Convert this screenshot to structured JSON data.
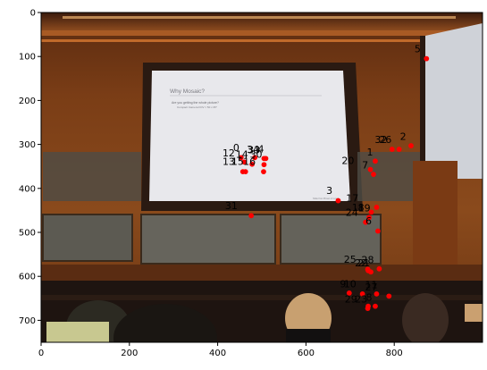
{
  "axes": {
    "xlim": [
      0,
      1000
    ],
    "ylim": [
      750,
      0
    ],
    "xticks": [
      0,
      200,
      400,
      600,
      800
    ],
    "yticks": [
      0,
      100,
      200,
      300,
      400,
      500,
      600,
      700
    ]
  },
  "slide": {
    "title": "Why Mosaic?",
    "bullet": "Are you getting the whole picture?",
    "sub_bullet": "Compact Camera FOV = 50 x 35°",
    "footer": "Slide from Brown & Lowe"
  },
  "point_color": "#ff0000",
  "points": [
    {
      "id": "0",
      "x": 453,
      "y": 330
    },
    {
      "id": "1",
      "x": 757,
      "y": 338
    },
    {
      "id": "2",
      "x": 838,
      "y": 303
    },
    {
      "id": "3",
      "x": 673,
      "y": 428
    },
    {
      "id": "4",
      "x": 484,
      "y": 330
    },
    {
      "id": "5",
      "x": 873,
      "y": 105
    },
    {
      "id": "6",
      "x": 763,
      "y": 497
    },
    {
      "id": "7",
      "x": 753,
      "y": 368
    },
    {
      "id": "8",
      "x": 757,
      "y": 668
    },
    {
      "id": "9",
      "x": 698,
      "y": 638
    },
    {
      "id": "10",
      "x": 728,
      "y": 640
    },
    {
      "id": "11",
      "x": 760,
      "y": 640
    },
    {
      "id": "12",
      "x": 460,
      "y": 340
    },
    {
      "id": "13",
      "x": 457,
      "y": 362
    },
    {
      "id": "14",
      "x": 478,
      "y": 345
    },
    {
      "id": "15",
      "x": 463,
      "y": 362
    },
    {
      "id": "16",
      "x": 504,
      "y": 362
    },
    {
      "id": "17",
      "x": 760,
      "y": 443
    },
    {
      "id": "18",
      "x": 748,
      "y": 454
    },
    {
      "id": "19",
      "x": 743,
      "y": 466
    },
    {
      "id": "20",
      "x": 746,
      "y": 357
    },
    {
      "id": "21",
      "x": 741,
      "y": 587
    },
    {
      "id": "22",
      "x": 747,
      "y": 590
    },
    {
      "id": "23",
      "x": 741,
      "y": 668
    },
    {
      "id": "24",
      "x": 735,
      "y": 477
    },
    {
      "id": "25",
      "x": 740,
      "y": 584
    },
    {
      "id": "26",
      "x": 811,
      "y": 311
    },
    {
      "id": "27",
      "x": 788,
      "y": 645
    },
    {
      "id": "28",
      "x": 766,
      "y": 583
    },
    {
      "id": "29",
      "x": 740,
      "y": 673
    },
    {
      "id": "30",
      "x": 505,
      "y": 346
    },
    {
      "id": "31",
      "x": 476,
      "y": 462
    },
    {
      "id": "32",
      "x": 795,
      "y": 311
    },
    {
      "id": "33",
      "x": 509,
      "y": 332
    },
    {
      "id": "34",
      "x": 505,
      "y": 332
    }
  ],
  "labels": [
    {
      "text": "0",
      "x": 442,
      "y": 315
    },
    {
      "text": "1",
      "x": 745,
      "y": 325
    },
    {
      "text": "2",
      "x": 820,
      "y": 290
    },
    {
      "text": "3",
      "x": 653,
      "y": 413
    },
    {
      "text": "4",
      "x": 498,
      "y": 318
    },
    {
      "text": "5",
      "x": 853,
      "y": 90
    },
    {
      "text": "6",
      "x": 742,
      "y": 482
    },
    {
      "text": "7",
      "x": 734,
      "y": 355
    },
    {
      "text": "8",
      "x": 743,
      "y": 655
    },
    {
      "text": "9",
      "x": 684,
      "y": 625
    },
    {
      "text": "10",
      "x": 700,
      "y": 625
    },
    {
      "text": "11",
      "x": 748,
      "y": 627
    },
    {
      "text": "12",
      "x": 425,
      "y": 327
    },
    {
      "text": "13",
      "x": 425,
      "y": 347
    },
    {
      "text": "14",
      "x": 455,
      "y": 330
    },
    {
      "text": "15",
      "x": 445,
      "y": 347
    },
    {
      "text": "16",
      "x": 472,
      "y": 347
    },
    {
      "text": "17",
      "x": 705,
      "y": 430
    },
    {
      "text": "18",
      "x": 718,
      "y": 451
    },
    {
      "text": "19",
      "x": 732,
      "y": 452
    },
    {
      "text": "20",
      "x": 695,
      "y": 345
    },
    {
      "text": "21",
      "x": 731,
      "y": 577
    },
    {
      "text": "22",
      "x": 725,
      "y": 577
    },
    {
      "text": "23",
      "x": 725,
      "y": 660
    },
    {
      "text": "24",
      "x": 704,
      "y": 462
    },
    {
      "text": "25",
      "x": 700,
      "y": 569
    },
    {
      "text": "26",
      "x": 780,
      "y": 297
    },
    {
      "text": "27",
      "x": 748,
      "y": 632
    },
    {
      "text": "28",
      "x": 740,
      "y": 570
    },
    {
      "text": "29",
      "x": 702,
      "y": 660
    },
    {
      "text": "30",
      "x": 487,
      "y": 330
    },
    {
      "text": "31",
      "x": 431,
      "y": 447
    },
    {
      "text": "32",
      "x": 770,
      "y": 297
    },
    {
      "text": "33",
      "x": 482,
      "y": 320
    },
    {
      "text": "34",
      "x": 480,
      "y": 319
    }
  ]
}
